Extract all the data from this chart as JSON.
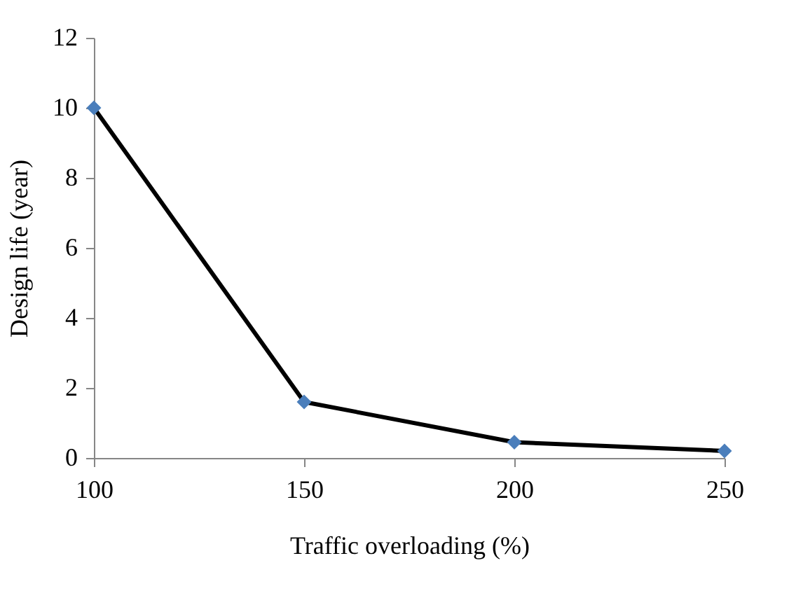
{
  "chart_data": {
    "type": "line",
    "xlabel": "Traffic overloading (%)",
    "ylabel": "Design life (year)",
    "x": [
      100,
      150,
      200,
      250
    ],
    "series": [
      {
        "color": "#000000",
        "values": [
          10,
          1.6,
          0.45,
          0.2
        ]
      }
    ],
    "xlim": [
      100,
      250
    ],
    "xticks": [
      100,
      150,
      200,
      250
    ],
    "ylim": [
      0,
      12
    ],
    "yticks": [
      0,
      2,
      4,
      6,
      8,
      10,
      12
    ],
    "grid": false,
    "marker": "diamond",
    "line_style": "solid"
  }
}
